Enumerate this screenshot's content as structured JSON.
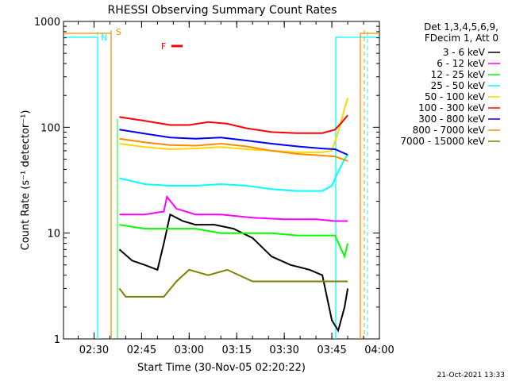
{
  "chart_data": {
    "type": "line",
    "title": "RHESSI Observing Summary Count Rates",
    "xlabel": "Start Time (30-Nov-05 02:20:22)",
    "ylabel": "Count Rate (s⁻¹ detector⁻¹)",
    "y_scale": "log",
    "ylim": [
      1,
      1000
    ],
    "xlim": [
      "02:20:22",
      "04:00:00"
    ],
    "x_ticks": [
      "02:30",
      "02:45",
      "03:00",
      "03:15",
      "03:30",
      "03:45",
      "04:00"
    ],
    "y_ticks": [
      "1",
      "10",
      "100",
      "1000"
    ],
    "legend_title_lines": [
      "Det 1,3,4,5,6,9,",
      "FDecim 1, Att 0"
    ],
    "legend_placement": "right",
    "series": [
      {
        "name": "3 - 6 keV",
        "color": "#000000",
        "x": [
          "02:38",
          "02:42",
          "02:46",
          "02:50",
          "02:52",
          "02:54",
          "02:58",
          "03:02",
          "03:08",
          "03:14",
          "03:20",
          "03:26",
          "03:32",
          "03:38",
          "03:42",
          "03:45",
          "03:47",
          "03:49",
          "03:50"
        ],
        "y": [
          7,
          5.5,
          5,
          4.5,
          8,
          15,
          13,
          12,
          12,
          11,
          9,
          6,
          5,
          4.5,
          4,
          1.5,
          1.2,
          2,
          3
        ]
      },
      {
        "name": "6 - 12 keV",
        "color": "#ff00ff",
        "x": [
          "02:38",
          "02:46",
          "02:52",
          "02:53",
          "02:56",
          "03:02",
          "03:10",
          "03:20",
          "03:30",
          "03:40",
          "03:46",
          "03:50"
        ],
        "y": [
          15,
          15,
          16,
          22,
          17,
          15,
          15,
          14,
          13.5,
          13.5,
          13,
          13
        ]
      },
      {
        "name": "12 - 25 keV",
        "color": "#00ff00",
        "x": [
          "02:38",
          "02:46",
          "02:54",
          "03:02",
          "03:10",
          "03:18",
          "03:26",
          "03:34",
          "03:42",
          "03:46",
          "03:49",
          "03:50"
        ],
        "y": [
          12,
          11,
          11,
          11,
          10,
          10,
          10,
          9.5,
          9.5,
          9.5,
          6,
          8
        ]
      },
      {
        "name": "25 - 50 keV",
        "color": "#00ffff",
        "x": [
          "02:38",
          "02:46",
          "02:54",
          "03:02",
          "03:10",
          "03:18",
          "03:26",
          "03:34",
          "03:42",
          "03:45",
          "03:47",
          "03:49",
          "03:50"
        ],
        "y": [
          33,
          29,
          28,
          28,
          29,
          28,
          26,
          25,
          25,
          28,
          38,
          50,
          55
        ]
      },
      {
        "name": "50 - 100 keV",
        "color": "#ffd700",
        "x": [
          "02:38",
          "02:46",
          "02:54",
          "03:02",
          "03:10",
          "03:18",
          "03:26",
          "03:34",
          "03:42",
          "03:45",
          "03:47",
          "03:49",
          "03:50"
        ],
        "y": [
          70,
          65,
          62,
          63,
          65,
          62,
          60,
          58,
          58,
          60,
          90,
          150,
          190
        ]
      },
      {
        "name": "100 - 300 keV",
        "color": "#ff0000",
        "x": [
          "02:38",
          "02:46",
          "02:54",
          "03:00",
          "03:06",
          "03:12",
          "03:18",
          "03:26",
          "03:34",
          "03:42",
          "03:46",
          "03:48",
          "03:50"
        ],
        "y": [
          125,
          115,
          105,
          105,
          112,
          108,
          98,
          90,
          88,
          88,
          95,
          110,
          130
        ]
      },
      {
        "name": "300 - 800 keV",
        "color": "#0000ff",
        "x": [
          "02:38",
          "02:46",
          "02:54",
          "03:02",
          "03:10",
          "03:18",
          "03:26",
          "03:34",
          "03:42",
          "03:46",
          "03:50"
        ],
        "y": [
          95,
          87,
          80,
          78,
          80,
          75,
          70,
          66,
          63,
          62,
          55
        ]
      },
      {
        "name": "800 - 7000 keV",
        "color": "#ff8c00",
        "x": [
          "02:38",
          "02:46",
          "02:54",
          "03:02",
          "03:10",
          "03:18",
          "03:26",
          "03:34",
          "03:42",
          "03:46",
          "03:50"
        ],
        "y": [
          78,
          72,
          68,
          67,
          70,
          66,
          60,
          56,
          54,
          53,
          48
        ]
      },
      {
        "name": "7000 - 15000 keV",
        "color": "#808000",
        "x": [
          "02:38",
          "02:40",
          "02:46",
          "02:52",
          "02:56",
          "03:00",
          "03:06",
          "03:12",
          "03:20",
          "03:28",
          "03:36",
          "03:44",
          "03:50"
        ],
        "y": [
          3,
          2.5,
          2.5,
          2.5,
          3.5,
          4.5,
          4,
          4.5,
          3.5,
          3.5,
          3.5,
          3.5,
          3.5
        ]
      }
    ],
    "markers": {
      "night_label": "N",
      "saa_label": "S",
      "flare_label": "F"
    },
    "timestamp": "21-Oct-2021 13:33"
  }
}
